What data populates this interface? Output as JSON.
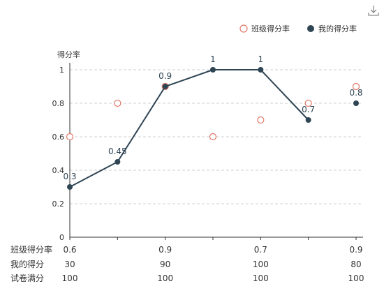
{
  "toolbar": {
    "download_icon": "download-icon"
  },
  "chart_data": {
    "type": "line",
    "ylabel": "得分率",
    "ylim": [
      0,
      1
    ],
    "yticks": [
      0,
      0.2,
      0.4,
      0.6,
      0.8,
      1
    ],
    "ytick_labels": [
      "0",
      "0.2",
      "0.4",
      "0.6",
      "0.8",
      "1"
    ],
    "grid": true,
    "legend_position": "top-right",
    "series": [
      {
        "name": "班级得分率",
        "style": "scatter-hollow",
        "color": "#e2786a",
        "values": [
          0.6,
          0.8,
          0.9,
          0.6,
          0.7,
          0.8,
          0.9
        ]
      },
      {
        "name": "我的得分率",
        "style": "line",
        "color": "#2f4554",
        "values": [
          0.3,
          0.45,
          0.9,
          1,
          1,
          0.7,
          0.8
        ],
        "labels": [
          "0.3",
          "0.45",
          "0.9",
          "1",
          "1",
          "0.7",
          "0.8"
        ]
      }
    ],
    "table": {
      "rows": [
        {
          "header": "班级得分率",
          "cells": [
            "0.6",
            "0.9",
            "0.7",
            "0.9"
          ]
        },
        {
          "header": "我的得分",
          "cells": [
            "30",
            "90",
            "100",
            "80"
          ]
        },
        {
          "header": "试卷满分",
          "cells": [
            "100",
            "100",
            "100",
            "100"
          ]
        }
      ]
    }
  }
}
